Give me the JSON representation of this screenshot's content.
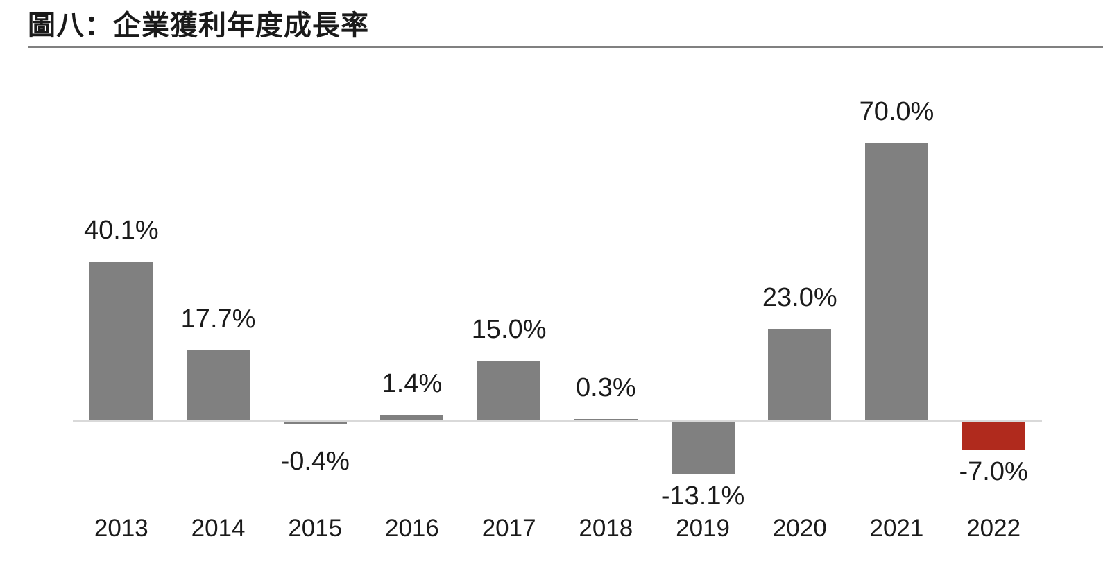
{
  "header": {
    "title": "圖八：企業獲利年度成長率"
  },
  "colors": {
    "bar_default": "#808080",
    "bar_highlight": "#b02a1d",
    "axis_line": "#d9d9d9",
    "title_rule": "#808080",
    "text": "#1a1a1a",
    "background": "#ffffff"
  },
  "chart_data": {
    "type": "bar",
    "title": "圖八：企業獲利年度成長率",
    "categories": [
      "2013",
      "2014",
      "2015",
      "2016",
      "2017",
      "2018",
      "2019",
      "2020",
      "2021",
      "2022"
    ],
    "values": [
      40.1,
      17.7,
      -0.4,
      1.4,
      15.0,
      0.3,
      -13.1,
      23.0,
      70.0,
      -7.0
    ],
    "labels": [
      "40.1%",
      "17.7%",
      "-0.4%",
      "1.4%",
      "15.0%",
      "0.3%",
      "-13.1%",
      "23.0%",
      "70.0%",
      "-7.0%"
    ],
    "highlight_index": 9,
    "xlabel": "",
    "ylabel": "",
    "ylim": [
      -20,
      75
    ],
    "grid": false,
    "legend": false,
    "value_label_position": "outside-end",
    "unit": "percent"
  }
}
